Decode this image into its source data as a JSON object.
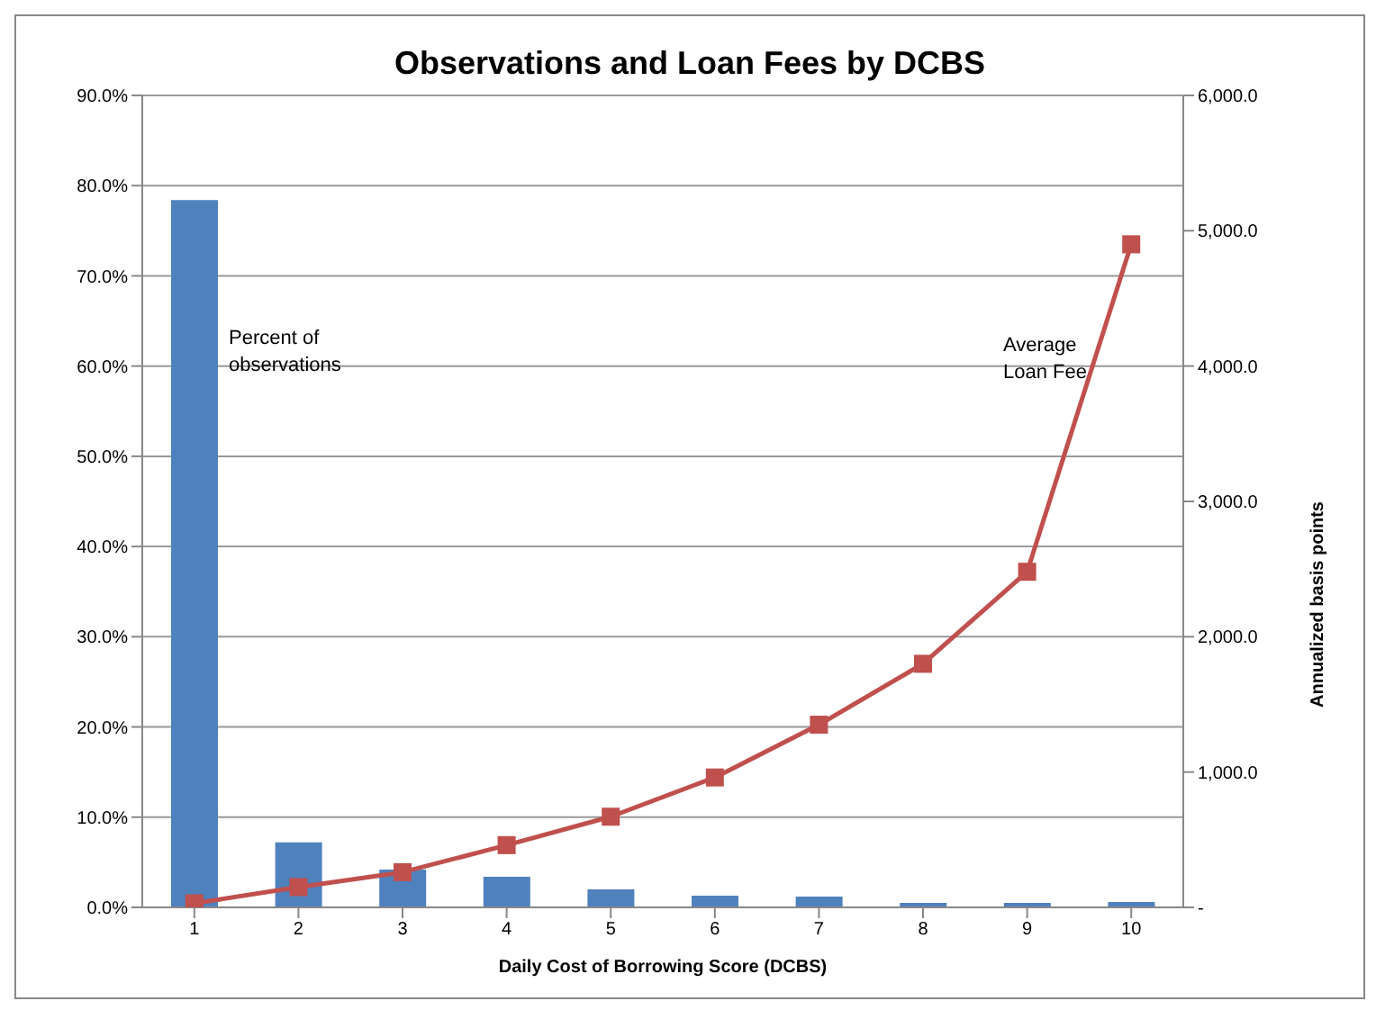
{
  "chart_data": {
    "type": "bar",
    "title": "Observations and Loan Fees by DCBS",
    "xlabel": "Daily Cost of Borrowing Score (DCBS)",
    "y2label": "Annualized basis points",
    "categories": [
      "1",
      "2",
      "3",
      "4",
      "5",
      "6",
      "7",
      "8",
      "9",
      "10"
    ],
    "series": [
      {
        "color": "#4f81bd",
        "values": [
          78.4,
          7.2,
          4.2,
          3.4,
          2.0,
          1.3,
          1.2,
          0.5,
          0.5,
          0.6
        ]
      },
      {
        "type": "line",
        "axis": "y2",
        "color": "#c0504d",
        "marker": "square",
        "values": [
          30,
          150,
          260,
          460,
          670,
          960,
          1350,
          1800,
          2480,
          4900
        ]
      }
    ],
    "ylim": [
      0,
      90
    ],
    "yticks": [
      {
        "value": 0,
        "label": "0.0%"
      },
      {
        "value": 10,
        "label": "10.0%"
      },
      {
        "value": 20,
        "label": "20.0%"
      },
      {
        "value": 30,
        "label": "30.0%"
      },
      {
        "value": 40,
        "label": "40.0%"
      },
      {
        "value": 50,
        "label": "50.0%"
      },
      {
        "value": 60,
        "label": "60.0%"
      },
      {
        "value": 70,
        "label": "70.0%"
      },
      {
        "value": 80,
        "label": "80.0%"
      },
      {
        "value": 90,
        "label": "90.0%"
      }
    ],
    "y2lim": [
      0,
      6000
    ],
    "y2ticks": [
      {
        "value": 0,
        "label": "-"
      },
      {
        "value": 1000,
        "label": "1,000.0"
      },
      {
        "value": 2000,
        "label": "2,000.0"
      },
      {
        "value": 3000,
        "label": "3,000.0"
      },
      {
        "value": 4000,
        "label": "4,000.0"
      },
      {
        "value": 5000,
        "label": "5,000.0"
      },
      {
        "value": 6000,
        "label": "6,000.0"
      }
    ],
    "grid": "y",
    "legend": false,
    "annotations": [
      "Percent of observations",
      "Average Loan Fee"
    ]
  }
}
